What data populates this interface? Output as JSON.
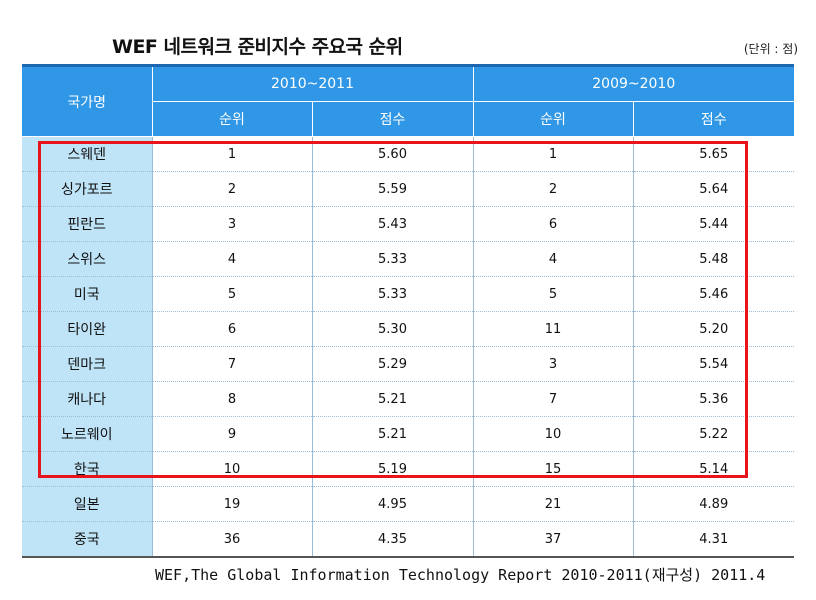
{
  "title": "WEF 네트워크 준비지수 주요국 순위",
  "unit": "(단위 : 점)",
  "header": {
    "country": "국가명",
    "period1": "2010~2011",
    "period2": "2009~2010",
    "rank": "순위",
    "score": "점수"
  },
  "rows": [
    {
      "country": "스웨덴",
      "rank1": "1",
      "score1": "5.60",
      "rank2": "1",
      "score2": "5.65"
    },
    {
      "country": "싱가포르",
      "rank1": "2",
      "score1": "5.59",
      "rank2": "2",
      "score2": "5.64"
    },
    {
      "country": "핀란드",
      "rank1": "3",
      "score1": "5.43",
      "rank2": "6",
      "score2": "5.44"
    },
    {
      "country": "스위스",
      "rank1": "4",
      "score1": "5.33",
      "rank2": "4",
      "score2": "5.48"
    },
    {
      "country": "미국",
      "rank1": "5",
      "score1": "5.33",
      "rank2": "5",
      "score2": "5.46"
    },
    {
      "country": "타이완",
      "rank1": "6",
      "score1": "5.30",
      "rank2": "11",
      "score2": "5.20"
    },
    {
      "country": "덴마크",
      "rank1": "7",
      "score1": "5.29",
      "rank2": "3",
      "score2": "5.54"
    },
    {
      "country": "캐나다",
      "rank1": "8",
      "score1": "5.21",
      "rank2": "7",
      "score2": "5.36"
    },
    {
      "country": "노르웨이",
      "rank1": "9",
      "score1": "5.21",
      "rank2": "10",
      "score2": "5.22"
    },
    {
      "country": "한국",
      "rank1": "10",
      "score1": "5.19",
      "rank2": "15",
      "score2": "5.14"
    },
    {
      "country": "일본",
      "rank1": "19",
      "score1": "4.95",
      "rank2": "21",
      "score2": "4.89"
    },
    {
      "country": "중국",
      "rank1": "36",
      "score1": "4.35",
      "rank2": "37",
      "score2": "4.31"
    }
  ],
  "source": "WEF,The Global Information Technology Report 2010-2011(재구성) 2011.4",
  "colors": {
    "header_bg": "#2f97e6",
    "country_bg": "#bfe3f7",
    "highlight": "#e8141b"
  }
}
